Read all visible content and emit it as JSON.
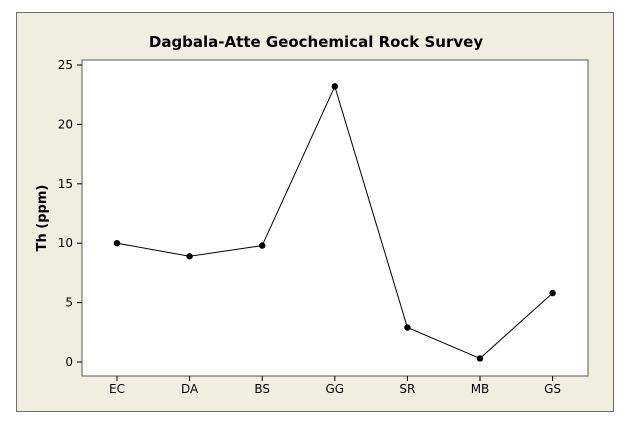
{
  "chart_data": {
    "type": "line",
    "title": "Dagbala-Atte Geochemical Rock Survey",
    "xlabel": "",
    "ylabel": "Th (ppm)",
    "categories": [
      "EC",
      "DA",
      "BS",
      "GG",
      "SR",
      "MB",
      "GS"
    ],
    "series": [
      {
        "values": [
          10.0,
          8.9,
          9.8,
          23.2,
          2.9,
          0.3,
          5.8
        ]
      }
    ],
    "ylim": [
      0,
      25
    ],
    "yticks": [
      0,
      5,
      10,
      15,
      20,
      25
    ],
    "grid": false,
    "legend": "none",
    "colors": {
      "frame_background": "#efeee0",
      "plot_background": "#ffffff",
      "line": "#000000",
      "marker": "#000000"
    }
  }
}
